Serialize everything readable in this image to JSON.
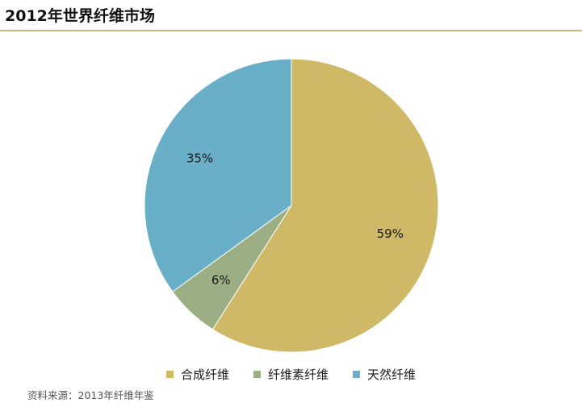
{
  "title": "2012年世界纤维市场",
  "source": "资料来源：2013年纤维年鉴",
  "chart_data": {
    "type": "pie",
    "title": "2012年世界纤维市场",
    "slices": [
      {
        "name": "合成纤维",
        "value": 59,
        "label": "59%",
        "color": "#cfb966"
      },
      {
        "name": "纤维素纤维",
        "value": 6,
        "label": "6%",
        "color": "#9caf84"
      },
      {
        "name": "天然纤维",
        "value": 35,
        "label": "35%",
        "color": "#6aafc8"
      }
    ],
    "start": "12 o'clock",
    "direction": "clockwise",
    "legend_position": "bottom"
  }
}
